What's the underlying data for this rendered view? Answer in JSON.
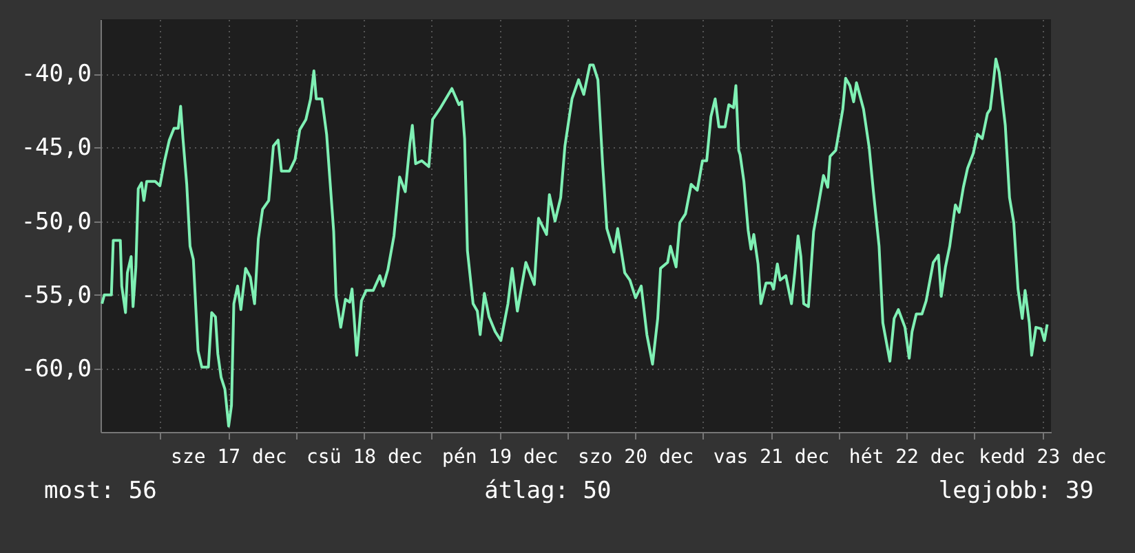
{
  "chart_data": {
    "type": "line",
    "xlim": [
      "--12-16T13:25",
      "--12-23T13:35"
    ],
    "ylim": [
      -64.3,
      -36.3
    ],
    "yticks": [
      {
        "value": -60,
        "label": "-60,0"
      },
      {
        "value": -55,
        "label": "-55,0"
      },
      {
        "value": -50,
        "label": "-50,0"
      },
      {
        "value": -45,
        "label": "-45,0"
      },
      {
        "value": -40,
        "label": "-40,0"
      }
    ],
    "xticks": [
      {
        "value": "--12-17T00:00",
        "label": null
      },
      {
        "value": "--12-17T12:00",
        "label": "sze 17 dec"
      },
      {
        "value": "--12-18T00:00",
        "label": null
      },
      {
        "value": "--12-18T12:00",
        "label": "csü 18 dec"
      },
      {
        "value": "--12-19T00:00",
        "label": null
      },
      {
        "value": "--12-19T12:00",
        "label": "pén 19 dec"
      },
      {
        "value": "--12-20T00:00",
        "label": null
      },
      {
        "value": "--12-20T12:00",
        "label": "szo 20 dec"
      },
      {
        "value": "--12-21T00:00",
        "label": null
      },
      {
        "value": "--12-21T12:00",
        "label": "vas 21 dec"
      },
      {
        "value": "--12-22T00:00",
        "label": null
      },
      {
        "value": "--12-22T12:00",
        "label": "hét 22 dec"
      },
      {
        "value": "--12-23T00:00",
        "label": null
      },
      {
        "value": "--12-23T12:00",
        "label": "kedd 23 dec"
      }
    ],
    "grid": true,
    "annotations": [
      "most: 56",
      "átlag: 50",
      "legjobb: 39"
    ],
    "series": [
      {
        "color": "#7ff0b4",
        "x": [
          "--12-16T13:40",
          "--12-16T14:05",
          "--12-16T15:20",
          "--12-16T15:40",
          "--12-16T16:55",
          "--12-16T17:10",
          "--12-16T17:50",
          "--12-16T18:10",
          "--12-16T18:50",
          "--12-16T19:10",
          "--12-16T19:40",
          "--12-16T20:05",
          "--12-16T20:40",
          "--12-16T21:05",
          "--12-16T21:35",
          "--12-16T23:05",
          "--12-16T23:55",
          "--12-17T00:45",
          "--12-17T01:35",
          "--12-17T02:25",
          "--12-17T03:10",
          "--12-17T03:35",
          "--12-17T04:00",
          "--12-17T04:40",
          "--12-17T05:15",
          "--12-17T05:50",
          "--12-17T06:40",
          "--12-17T07:20",
          "--12-17T08:30",
          "--12-17T09:05",
          "--12-17T09:45",
          "--12-17T10:10",
          "--12-17T10:45",
          "--12-17T11:25",
          "--12-17T12:05",
          "--12-17T12:35",
          "--12-17T13:00",
          "--12-17T13:40",
          "--12-17T14:15",
          "--12-17T15:05",
          "--12-17T15:55",
          "--12-17T16:40",
          "--12-17T17:20",
          "--12-17T18:05",
          "--12-17T19:10",
          "--12-17T20:00",
          "--12-17T20:50",
          "--12-17T21:25",
          "--12-17T22:50",
          "--12-17T23:50",
          "--12-18T00:40",
          "--12-18T01:45",
          "--12-18T02:35",
          "--12-18T03:10",
          "--12-18T03:35",
          "--12-18T04:35",
          "--12-18T05:25",
          "--12-18T06:40",
          "--12-18T07:05",
          "--12-18T07:55",
          "--12-18T08:45",
          "--12-18T09:30",
          "--12-18T09:55",
          "--12-18T10:45",
          "--12-18T11:35",
          "--12-18T12:25",
          "--12-18T13:40",
          "--12-18T14:50",
          "--12-18T15:25",
          "--12-18T16:15",
          "--12-18T17:20",
          "--12-18T18:20",
          "--12-18T19:20",
          "--12-18T20:10",
          "--12-18T20:35",
          "--12-18T21:10",
          "--12-18T22:15",
          "--12-18T23:30",
          "--12-19T00:10",
          "--12-19T01:25",
          "--12-19T03:35",
          "--12-19T04:50",
          "--12-19T05:20",
          "--12-19T05:50",
          "--12-19T06:20",
          "--12-19T07:20",
          "--12-19T08:05",
          "--12-19T08:35",
          "--12-19T09:20",
          "--12-19T10:10",
          "--12-19T11:15",
          "--12-19T12:15",
          "--12-19T13:30",
          "--12-19T14:15",
          "--12-19T15:10",
          "--12-19T16:40",
          "--12-19T18:10",
          "--12-19T18:55",
          "--12-19T20:20",
          "--12-19T20:50",
          "--12-19T21:50",
          "--12-19T22:50",
          "--12-19T23:35",
          "--12-20T00:50",
          "--12-20T02:00",
          "--12-20T02:55",
          "--12-20T04:00",
          "--12-20T04:35",
          "--12-20T05:25",
          "--12-20T06:15",
          "--12-20T07:00",
          "--12-20T08:15",
          "--12-20T08:55",
          "--12-20T10:10",
          "--12-20T11:05",
          "--12-20T12:05",
          "--12-20T13:05",
          "--12-20T14:05",
          "--12-20T15:05",
          "--12-20T16:00",
          "--12-20T16:30",
          "--12-20T17:45",
          "--12-20T18:15",
          "--12-20T19:15",
          "--12-20T19:55",
          "--12-20T20:55",
          "--12-20T21:55",
          "--12-20T23:00",
          "--12-20T23:55",
          "--12-21T00:40",
          "--12-21T01:25",
          "--12-21T02:10",
          "--12-21T02:50",
          "--12-21T03:55",
          "--12-21T04:35",
          "--12-21T05:25",
          "--12-21T05:50",
          "--12-21T06:20",
          "--12-21T06:35",
          "--12-21T07:15",
          "--12-21T08:00",
          "--12-21T08:30",
          "--12-21T09:00",
          "--12-21T09:45",
          "--12-21T10:15",
          "--12-21T11:10",
          "--12-21T12:05",
          "--12-21T12:30",
          "--12-21T13:10",
          "--12-21T13:40",
          "--12-21T14:40",
          "--12-21T15:40",
          "--12-21T16:15",
          "--12-21T16:50",
          "--12-21T17:20",
          "--12-21T17:50",
          "--12-21T18:40",
          "--12-21T19:35",
          "--12-21T20:20",
          "--12-21T21:20",
          "--12-21T22:05",
          "--12-21T22:30",
          "--12-21T23:30",
          "--12-22T00:45",
          "--12-22T01:15",
          "--12-22T02:00",
          "--12-22T02:40",
          "--12-22T03:10",
          "--12-22T04:25",
          "--12-22T05:25",
          "--12-22T06:10",
          "--12-22T07:10",
          "--12-22T07:50",
          "--12-22T09:05",
          "--12-22T09:50",
          "--12-22T10:35",
          "--12-22T11:45",
          "--12-22T12:30",
          "--12-22T13:00",
          "--12-22T13:45",
          "--12-22T14:45",
          "--12-22T15:30",
          "--12-22T16:45",
          "--12-22T17:40",
          "--12-22T18:10",
          "--12-22T18:55",
          "--12-22T19:40",
          "--12-22T20:40",
          "--12-22T21:20",
          "--12-22T22:05",
          "--12-22T22:50",
          "--12-22T23:50",
          "--12-23T00:35",
          "--12-23T01:25",
          "--12-23T02:20",
          "--12-23T02:50",
          "--12-23T03:20",
          "--12-23T03:50",
          "--12-23T04:25",
          "--12-23T05:30",
          "--12-23T06:15",
          "--12-23T07:00",
          "--12-23T07:45",
          "--12-23T08:30",
          "--12-23T09:00",
          "--12-23T09:45",
          "--12-23T10:10",
          "--12-23T10:55",
          "--12-23T11:50",
          "--12-23T12:25",
          "--12-23T12:55"
        ],
        "values": [
          -55.6,
          -55.0,
          -55.0,
          -51.3,
          -51.3,
          -54.4,
          -56.2,
          -53.5,
          -52.4,
          -55.8,
          -53.1,
          -47.8,
          -47.4,
          -48.6,
          -47.3,
          -47.3,
          -47.6,
          -45.9,
          -44.5,
          -43.7,
          -43.7,
          -42.2,
          -44.4,
          -47.5,
          -51.7,
          -52.6,
          -58.8,
          -59.9,
          -59.9,
          -56.2,
          -56.5,
          -59.0,
          -60.6,
          -61.4,
          -63.9,
          -62.5,
          -55.6,
          -54.4,
          -56.0,
          -53.2,
          -53.8,
          -55.6,
          -51.2,
          -49.2,
          -48.6,
          -44.9,
          -44.5,
          -46.6,
          -46.6,
          -45.8,
          -43.8,
          -43.1,
          -41.7,
          -39.8,
          -41.7,
          -41.7,
          -44.1,
          -50.7,
          -55.1,
          -57.2,
          -55.3,
          -55.5,
          -54.6,
          -59.1,
          -55.4,
          -54.7,
          -54.7,
          -53.7,
          -54.4,
          -53.3,
          -51.0,
          -47.0,
          -48.0,
          -44.7,
          -43.5,
          -46.1,
          -45.9,
          -46.3,
          -43.1,
          -42.4,
          -41.0,
          -42.1,
          -41.9,
          -44.4,
          -52.0,
          -55.6,
          -56.1,
          -57.7,
          -54.9,
          -56.5,
          -57.5,
          -58.1,
          -55.6,
          -53.2,
          -56.1,
          -52.8,
          -54.3,
          -49.8,
          -50.9,
          -48.2,
          -50.0,
          -48.4,
          -44.9,
          -41.7,
          -40.4,
          -41.4,
          -39.4,
          -39.4,
          -40.4,
          -46.1,
          -50.5,
          -52.1,
          -50.5,
          -53.5,
          -54.0,
          -55.2,
          -54.4,
          -57.7,
          -59.7,
          -56.6,
          -53.2,
          -52.8,
          -51.7,
          -53.1,
          -50.1,
          -49.5,
          -47.5,
          -47.9,
          -45.9,
          -45.9,
          -42.9,
          -41.7,
          -43.6,
          -43.6,
          -42.1,
          -42.3,
          -40.8,
          -45.2,
          -45.5,
          -47.3,
          -50.6,
          -51.9,
          -50.9,
          -52.9,
          -55.6,
          -54.2,
          -54.2,
          -54.6,
          -52.9,
          -54.0,
          -53.7,
          -55.6,
          -53.5,
          -51.0,
          -52.4,
          -55.6,
          -55.8,
          -50.7,
          -49.1,
          -46.9,
          -47.7,
          -45.6,
          -45.2,
          -42.4,
          -40.3,
          -40.8,
          -41.9,
          -40.6,
          -42.4,
          -45.0,
          -48.0,
          -51.7,
          -56.9,
          -59.5,
          -56.6,
          -56.0,
          -57.2,
          -59.3,
          -57.5,
          -56.3,
          -56.3,
          -55.4,
          -52.8,
          -52.3,
          -55.1,
          -53.1,
          -51.7,
          -48.9,
          -49.4,
          -47.7,
          -46.4,
          -45.4,
          -44.1,
          -44.4,
          -42.7,
          -42.4,
          -40.8,
          -39.0,
          -39.9,
          -43.5,
          -48.4,
          -50.1,
          -54.6,
          -56.6,
          -54.7,
          -56.9,
          -59.1,
          -57.2,
          -57.3,
          -58.1,
          -57.0
        ]
      }
    ]
  }
}
